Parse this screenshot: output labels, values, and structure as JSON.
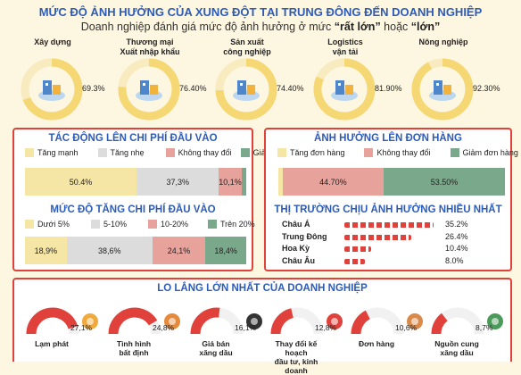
{
  "header": {
    "title": "MỨC ĐỘ ẢNH HƯỞNG CỦA XUNG ĐỘT TẠI TRUNG ĐÔNG ĐẾN DOANH NGHIỆP",
    "subtitle_prefix": "Doanh nghiệp đánh giá mức độ ảnh hưởng ở mức ",
    "subtitle_q1": "“rất lớn”",
    "subtitle_mid": " hoặc ",
    "subtitle_q2": "“lớn”"
  },
  "colors": {
    "accent_red": "#e0413a",
    "title_blue": "#2d5bb9",
    "gauge_yellow": "#f5d774",
    "gauge_track": "#f8ebc0",
    "cream": "#f6e6a6",
    "grey": "#dcdcdc",
    "pink": "#e8a29c",
    "green": "#7aa88a"
  },
  "sectors": [
    {
      "label": "Xây dựng",
      "value_text": "69.3%",
      "icon": "construction-icon"
    },
    {
      "label": "Thương mại\nXuất nhập khẩu",
      "value_text": "76.40%",
      "icon": "trade-map-icon"
    },
    {
      "label": "Sản xuất\ncông nghiệp",
      "value_text": "74.40%",
      "icon": "factory-icon"
    },
    {
      "label": "Logistics\nvận tải",
      "value_text": "81.90%",
      "icon": "logistics-icon"
    },
    {
      "label": "Nông nghiệp",
      "value_text": "92.30%",
      "icon": "farm-icon"
    }
  ],
  "cost_impact": {
    "title": "TÁC ĐỘNG LÊN CHI PHÍ ĐẦU VÀO",
    "legend": [
      "Tăng mạnh",
      "Tăng nhẹ",
      "Không thay đổi",
      "Giảm"
    ],
    "labels": [
      "50.4%",
      "37,3%",
      "10,1%",
      ""
    ]
  },
  "cost_increase": {
    "title": "MỨC ĐỘ TĂNG CHI PHÍ ĐẦU VÀO",
    "legend": [
      "Dưới 5%",
      "5-10%",
      "10-20%",
      "Trên 20%"
    ],
    "labels": [
      "18,9%",
      "38,6%",
      "24,1%",
      "18,4%"
    ]
  },
  "orders_impact": {
    "title": "ẢNH HƯỞNG LÊN ĐƠN HÀNG",
    "legend": [
      "Tăng đơn hàng",
      "Không thay đổi",
      "Giảm đơn hàng"
    ],
    "labels": [
      "",
      "44.70%",
      "53.50%"
    ]
  },
  "markets": {
    "title": "THỊ TRƯỜNG CHỊU ẢNH HƯỞNG NHIỀU NHẤT",
    "rows": [
      {
        "name": "Châu Á",
        "value_text": "35.2%"
      },
      {
        "name": "Trung Đông",
        "value_text": "26.4%"
      },
      {
        "name": "Hoa Kỳ",
        "value_text": "10.4%"
      },
      {
        "name": "Châu Âu",
        "value_text": "8.0%"
      }
    ]
  },
  "worries": {
    "title": "LO LẮNG LỚN NHẤT CỦA DOANH NGHIỆP",
    "items": [
      {
        "label": "Lạm phát",
        "value_text": "27,1%",
        "icon": "money-bag-icon"
      },
      {
        "label": "Tình hình\nbất định",
        "value_text": "24,8%",
        "icon": "question-box-icon"
      },
      {
        "label": "Giá bán\nxăng dầu",
        "value_text": "16,1%",
        "icon": "fuel-barrel-icon"
      },
      {
        "label": "Thay đổi kế hoạch\nđầu tư, kinh doanh",
        "value_text": "12,8%",
        "icon": "target-icon"
      },
      {
        "label": "Đơn hàng",
        "value_text": "10,6%",
        "icon": "delivery-box-icon"
      },
      {
        "label": "Nguồn cung\nxăng dầu",
        "value_text": "8,7%",
        "icon": "fuel-pump-icon"
      }
    ]
  },
  "chart_data": [
    {
      "type": "pie",
      "title": "MỨC ĐỘ ẢNH HƯỞNG CỦA XUNG ĐỘT TẠI TRUNG ĐÔNG ĐẾN DOANH NGHIỆP",
      "categories": [
        "Xây dựng",
        "Thương mại Xuất nhập khẩu",
        "Sản xuất công nghiệp",
        "Logistics vận tải",
        "Nông nghiệp"
      ],
      "values": [
        69.3,
        76.4,
        74.4,
        81.9,
        92.3
      ]
    },
    {
      "type": "bar",
      "title": "TÁC ĐỘNG LÊN CHI PHÍ ĐẦU VÀO",
      "categories": [
        "Tăng mạnh",
        "Tăng nhẹ",
        "Không thay đổi",
        "Giảm"
      ],
      "values": [
        50.4,
        37.3,
        10.1,
        2.2
      ]
    },
    {
      "type": "bar",
      "title": "MỨC ĐỘ TĂNG CHI PHÍ ĐẦU VÀO",
      "categories": [
        "Dưới 5%",
        "5-10%",
        "10-20%",
        "Trên 20%"
      ],
      "values": [
        18.9,
        38.6,
        24.1,
        18.4
      ]
    },
    {
      "type": "bar",
      "title": "ẢNH HƯỞNG LÊN ĐƠN HÀNG",
      "categories": [
        "Tăng đơn hàng",
        "Không thay đổi",
        "Giảm đơn hàng"
      ],
      "values": [
        1.8,
        44.7,
        53.5
      ]
    },
    {
      "type": "bar",
      "title": "THỊ TRƯỜNG CHỊU ẢNH HƯỞNG NHIỀU NHẤT",
      "categories": [
        "Châu Á",
        "Trung Đông",
        "Hoa Kỳ",
        "Châu Âu"
      ],
      "values": [
        35.2,
        26.4,
        10.4,
        8.0
      ]
    },
    {
      "type": "pie",
      "title": "LO LẮNG LỚN NHẤT CỦA DOANH NGHIỆP",
      "categories": [
        "Lạm phát",
        "Tình hình bất định",
        "Giá bán xăng dầu",
        "Thay đổi kế hoạch đầu tư, kinh doanh",
        "Đơn hàng",
        "Nguồn cung xăng dầu"
      ],
      "values": [
        27.1,
        24.8,
        16.1,
        12.8,
        10.6,
        8.7
      ]
    }
  ]
}
